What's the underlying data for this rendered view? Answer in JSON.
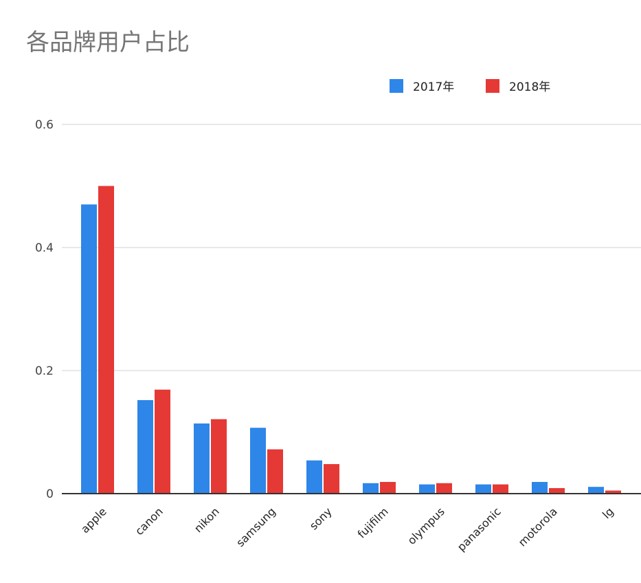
{
  "chart_data": {
    "type": "bar",
    "title": "各品牌用户占比",
    "xlabel": "",
    "ylabel": "",
    "categories": [
      "apple",
      "canon",
      "nikon",
      "samsung",
      "sony",
      "fujifilm",
      "olympus",
      "panasonic",
      "motorola",
      "lg"
    ],
    "series": [
      {
        "name": "2017年",
        "color": "#2e86e8",
        "values": [
          0.47,
          0.152,
          0.114,
          0.107,
          0.054,
          0.017,
          0.015,
          0.015,
          0.019,
          0.011
        ]
      },
      {
        "name": "2018年",
        "color": "#e53935",
        "values": [
          0.5,
          0.169,
          0.121,
          0.072,
          0.048,
          0.019,
          0.017,
          0.015,
          0.009,
          0.005
        ]
      }
    ],
    "ylim": [
      0,
      0.6
    ],
    "yticks": [
      {
        "value": 0,
        "label": "0"
      },
      {
        "value": 0.2,
        "label": "0.2"
      },
      {
        "value": 0.4,
        "label": "0.4"
      },
      {
        "value": 0.6,
        "label": "0.6"
      }
    ],
    "grid": true,
    "legend_position": "top-right"
  }
}
